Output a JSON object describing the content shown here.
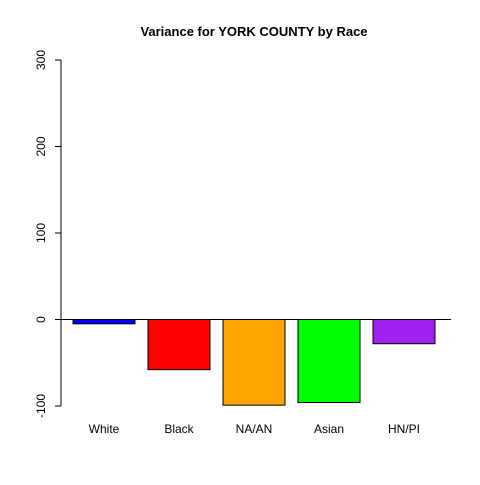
{
  "chart_data": {
    "type": "bar",
    "title": "Variance for YORK COUNTY by Race",
    "xlabel": "",
    "ylabel": "",
    "categories": [
      "White",
      "Black",
      "NA/AN",
      "Asian",
      "HN/PI"
    ],
    "values": [
      -5,
      -58,
      -99,
      -96,
      -28
    ],
    "colors": [
      "#0000ff",
      "#ff0000",
      "#ffa500",
      "#00ff00",
      "#a020f0"
    ],
    "ylim": [
      -100,
      300
    ],
    "yticks": [
      -100,
      0,
      100,
      200,
      300
    ],
    "ytick_labels": [
      "-100",
      "0",
      "100",
      "200",
      "300"
    ],
    "grid": false,
    "legend": "none",
    "reference_line_y": 0
  }
}
